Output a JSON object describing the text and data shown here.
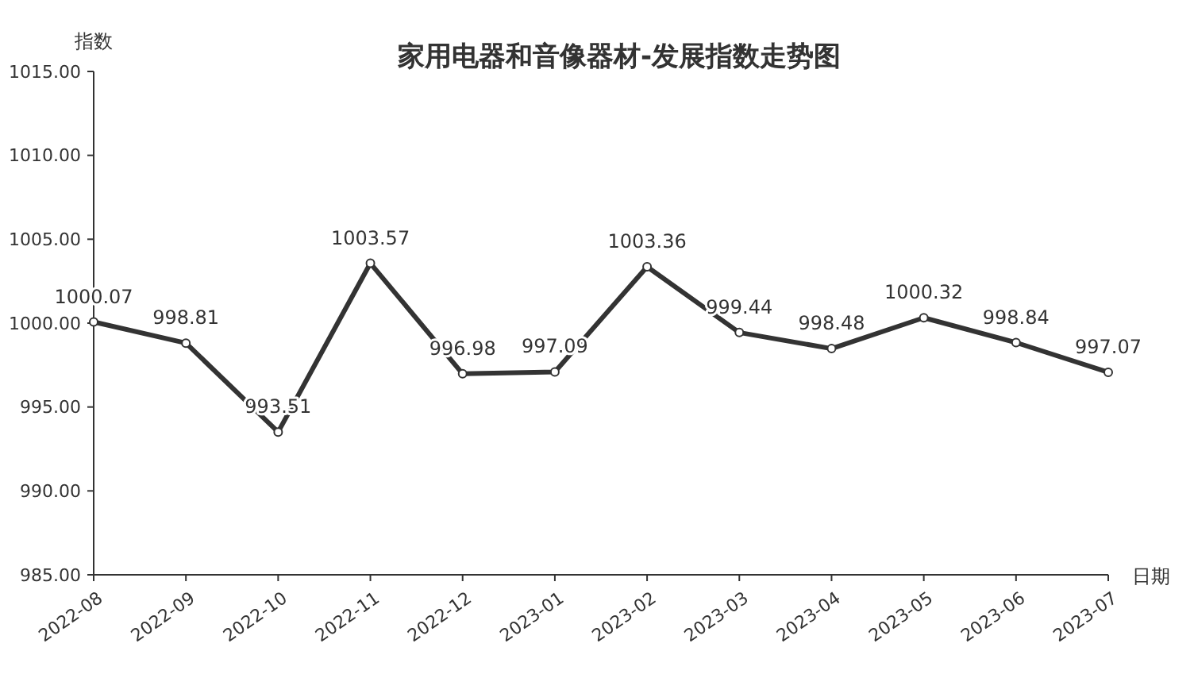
{
  "chart_data": {
    "type": "line",
    "title": "家用电器和音像器材-发展指数走势图",
    "xlabel": "日期",
    "ylabel": "指数",
    "categories": [
      "2022-08",
      "2022-09",
      "2022-10",
      "2022-11",
      "2022-12",
      "2023-01",
      "2023-02",
      "2023-03",
      "2023-04",
      "2023-05",
      "2023-06",
      "2023-07"
    ],
    "series": [
      {
        "color": "#333333",
        "values": [
          1000.07,
          998.81,
          993.51,
          1003.57,
          996.98,
          997.09,
          1003.36,
          999.44,
          998.48,
          1000.32,
          998.84,
          997.07
        ]
      }
    ],
    "ylim": [
      985,
      1015
    ],
    "yticks": [
      {
        "value": 985,
        "label": "985.00"
      },
      {
        "value": 990,
        "label": "990.00"
      },
      {
        "value": 995,
        "label": "995.00"
      },
      {
        "value": 1000,
        "label": "1000.00"
      },
      {
        "value": 1005,
        "label": "1005.00"
      },
      {
        "value": 1010,
        "label": "1010.00"
      },
      {
        "value": 1015,
        "label": "1015.00"
      }
    ],
    "data_labels": true,
    "grid": false,
    "marker": "circle",
    "line_style": "solid"
  }
}
